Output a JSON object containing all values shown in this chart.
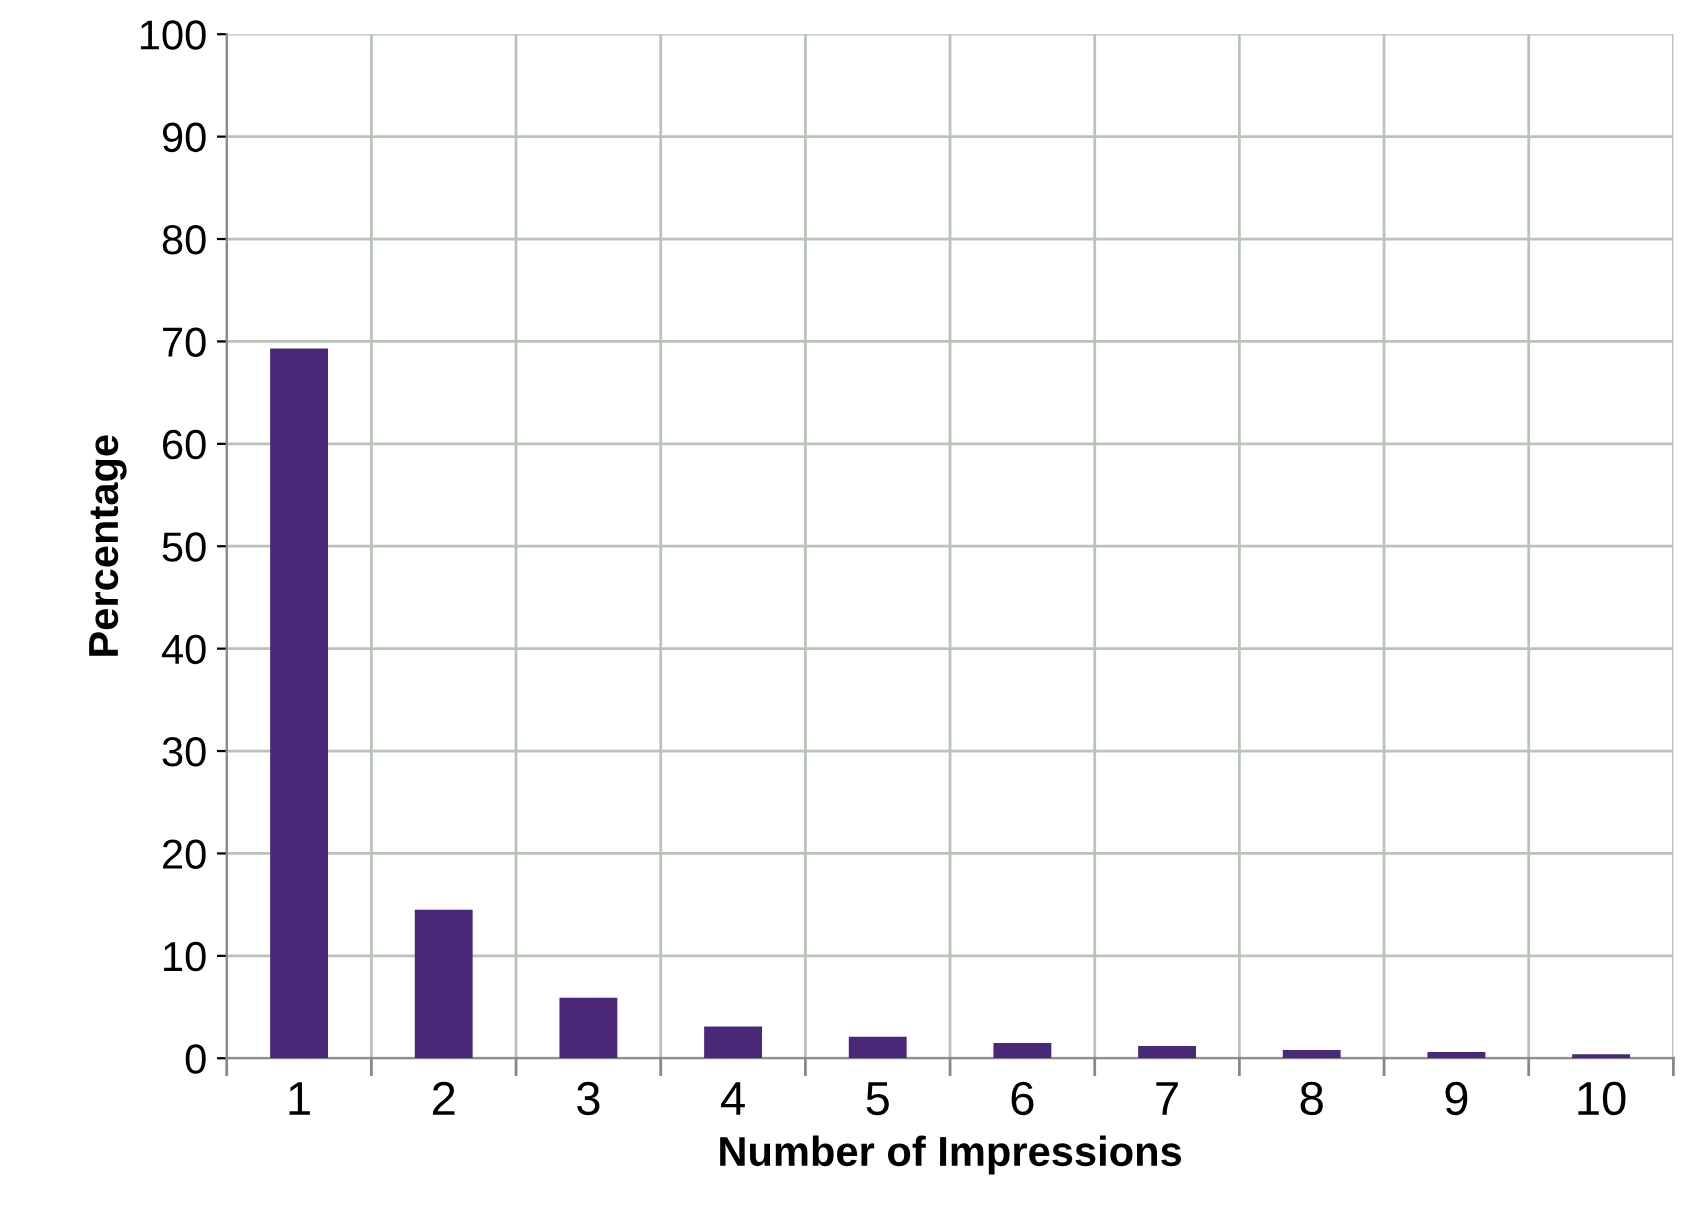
{
  "chart_data": {
    "type": "bar",
    "xlabel": "Number of Impressions",
    "ylabel": "Percentage",
    "categories": [
      "1",
      "2",
      "3",
      "4",
      "5",
      "6",
      "7",
      "8",
      "9",
      "10"
    ],
    "values": [
      69.3,
      14.5,
      5.9,
      3.1,
      2.1,
      1.5,
      1.2,
      0.8,
      0.6,
      0.4
    ],
    "color": "#4a2878",
    "ylim": [
      0,
      100
    ],
    "yticks": [
      0,
      10,
      20,
      30,
      40,
      50,
      60,
      70,
      80,
      90,
      100
    ],
    "grid": true
  }
}
